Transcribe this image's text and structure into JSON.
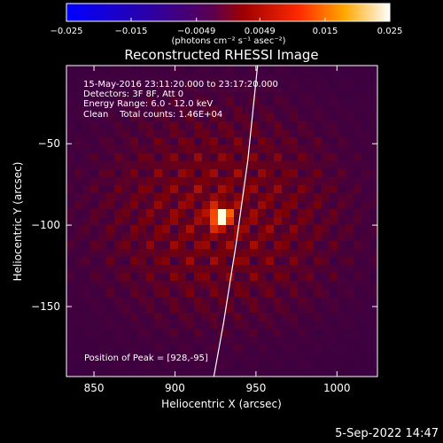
{
  "chart_data": {
    "type": "heatmap",
    "title": "Reconstructed RHESSI Image",
    "xlabel": "Heliocentric X (arcsec)",
    "ylabel": "Heliocentric Y (arcsec)",
    "xlim": [
      833,
      1025
    ],
    "ylim": [
      -193,
      -2
    ],
    "x_ticks": [
      850,
      900,
      950,
      1000
    ],
    "y_ticks": [
      -50,
      -100,
      -150
    ],
    "colorbar": {
      "range": [
        -0.025,
        0.025
      ],
      "tick_values": [
        -0.025,
        -0.015,
        -0.0049,
        0.0049,
        0.015,
        0.025
      ],
      "tick_labels": [
        "−0.025",
        "−0.015",
        "−0.0049",
        "0.0049",
        "0.015",
        "0.025"
      ],
      "units_label": "(photons cm⁻² s⁻¹ asec⁻²)"
    },
    "info_lines": [
      "15-May-2016 23:11:20.000 to 23:17:20.000",
      "Detectors: 3F 8F, Att 0",
      "Energy Range: 6.0 - 12.0 keV",
      "Clean    Total counts: 1.46E+04"
    ],
    "peak": {
      "x": 928,
      "y": -95
    },
    "peak_label": "Position of Peak = [928,-95]",
    "limb_arc": [
      [
        951,
        -2
      ],
      [
        945,
        -60
      ],
      [
        938,
        -110
      ],
      [
        930,
        -160
      ],
      [
        924,
        -193
      ]
    ]
  },
  "footer": {
    "timestamp": "5-Sep-2022 14:47"
  },
  "colors": {
    "background": "#000000",
    "limb": "#ffffff",
    "text": "#ffffff"
  }
}
